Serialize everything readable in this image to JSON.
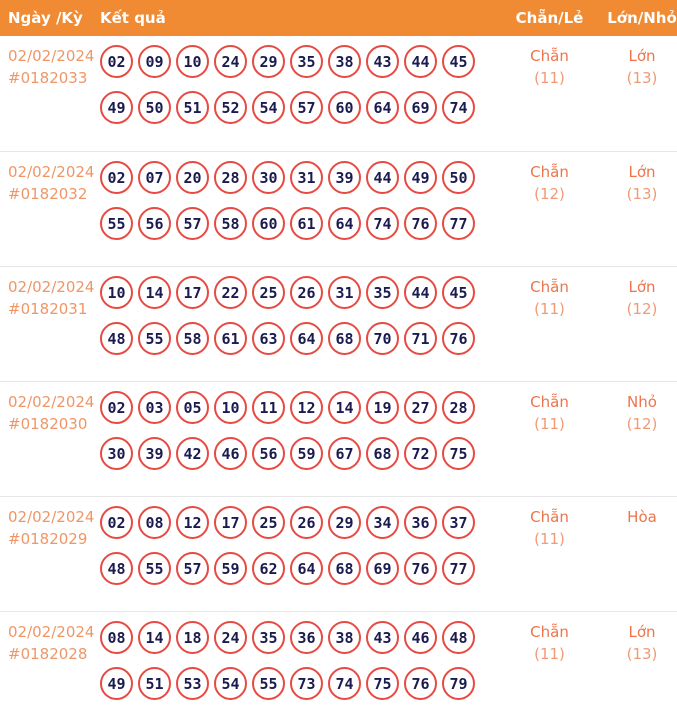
{
  "header": {
    "columns": [
      "Ngày /Kỳ",
      "Kết quả",
      "Chẵn/Lẻ",
      "Lớn/Nhỏ"
    ]
  },
  "colors": {
    "header_background": "#F08A33",
    "header_text": "#FFFFFF",
    "date_text": "#EF9666",
    "stat_label_text": "#ED744B",
    "stat_count_text": "#F09A76",
    "ball_border": "#E64A42",
    "ball_number_text": "#1B1B4F",
    "row_divider": "#E7E7E7"
  },
  "rows": [
    {
      "date": "02/02/2024",
      "period": "#0182033",
      "numbers_line1": [
        "02",
        "09",
        "10",
        "24",
        "29",
        "35",
        "38",
        "43",
        "44",
        "45"
      ],
      "numbers_line2": [
        "49",
        "50",
        "51",
        "52",
        "54",
        "57",
        "60",
        "64",
        "69",
        "74"
      ],
      "even_odd": {
        "label": "Chẵn",
        "count": "(11)"
      },
      "big_small": {
        "label": "Lớn",
        "count": "(13)"
      }
    },
    {
      "date": "02/02/2024",
      "period": "#0182032",
      "numbers_line1": [
        "02",
        "07",
        "20",
        "28",
        "30",
        "31",
        "39",
        "44",
        "49",
        "50"
      ],
      "numbers_line2": [
        "55",
        "56",
        "57",
        "58",
        "60",
        "61",
        "64",
        "74",
        "76",
        "77"
      ],
      "even_odd": {
        "label": "Chẵn",
        "count": "(12)"
      },
      "big_small": {
        "label": "Lớn",
        "count": "(13)"
      }
    },
    {
      "date": "02/02/2024",
      "period": "#0182031",
      "numbers_line1": [
        "10",
        "14",
        "17",
        "22",
        "25",
        "26",
        "31",
        "35",
        "44",
        "45"
      ],
      "numbers_line2": [
        "48",
        "55",
        "58",
        "61",
        "63",
        "64",
        "68",
        "70",
        "71",
        "76"
      ],
      "even_odd": {
        "label": "Chẵn",
        "count": "(11)"
      },
      "big_small": {
        "label": "Lớn",
        "count": "(12)"
      }
    },
    {
      "date": "02/02/2024",
      "period": "#0182030",
      "numbers_line1": [
        "02",
        "03",
        "05",
        "10",
        "11",
        "12",
        "14",
        "19",
        "27",
        "28"
      ],
      "numbers_line2": [
        "30",
        "39",
        "42",
        "46",
        "56",
        "59",
        "67",
        "68",
        "72",
        "75"
      ],
      "even_odd": {
        "label": "Chẵn",
        "count": "(11)"
      },
      "big_small": {
        "label": "Nhỏ",
        "count": "(12)"
      }
    },
    {
      "date": "02/02/2024",
      "period": "#0182029",
      "numbers_line1": [
        "02",
        "08",
        "12",
        "17",
        "25",
        "26",
        "29",
        "34",
        "36",
        "37"
      ],
      "numbers_line2": [
        "48",
        "55",
        "57",
        "59",
        "62",
        "64",
        "68",
        "69",
        "76",
        "77"
      ],
      "even_odd": {
        "label": "Chẵn",
        "count": "(11)"
      },
      "big_small": {
        "label": "Hòa",
        "count": ""
      }
    },
    {
      "date": "02/02/2024",
      "period": "#0182028",
      "numbers_line1": [
        "08",
        "14",
        "18",
        "24",
        "35",
        "36",
        "38",
        "43",
        "46",
        "48"
      ],
      "numbers_line2": [
        "49",
        "51",
        "53",
        "54",
        "55",
        "73",
        "74",
        "75",
        "76",
        "79"
      ],
      "even_odd": {
        "label": "Chẵn",
        "count": "(11)"
      },
      "big_small": {
        "label": "Lớn",
        "count": "(13)"
      }
    }
  ]
}
